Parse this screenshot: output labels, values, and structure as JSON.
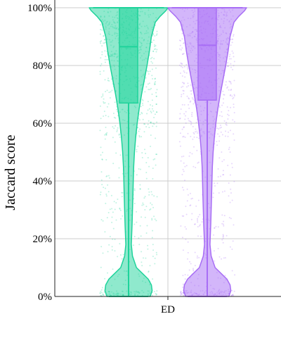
{
  "chart_data": {
    "type": "violin",
    "ylabel": "Jaccard score",
    "ylim": [
      0,
      1
    ],
    "y_tick_values": [
      0,
      0.2,
      0.4,
      0.6,
      0.8,
      1.0
    ],
    "y_tick_labels": [
      "0%",
      "20%",
      "40%",
      "60%",
      "80%",
      "100%"
    ],
    "categories": [
      "ED"
    ],
    "grid": true,
    "series": [
      {
        "color": "#1fd39b",
        "box": {
          "q1": 0.67,
          "median": 0.865,
          "q3": 1.0,
          "whisker_low": 0.0,
          "whisker_high": 1.0
        },
        "density": [
          [
            0.0,
            0.55
          ],
          [
            0.02,
            0.6
          ],
          [
            0.04,
            0.58
          ],
          [
            0.06,
            0.5
          ],
          [
            0.08,
            0.35
          ],
          [
            0.1,
            0.2
          ],
          [
            0.14,
            0.1
          ],
          [
            0.18,
            0.07
          ],
          [
            0.25,
            0.09
          ],
          [
            0.3,
            0.1
          ],
          [
            0.35,
            0.11
          ],
          [
            0.4,
            0.12
          ],
          [
            0.45,
            0.13
          ],
          [
            0.5,
            0.15
          ],
          [
            0.55,
            0.18
          ],
          [
            0.6,
            0.22
          ],
          [
            0.65,
            0.27
          ],
          [
            0.7,
            0.33
          ],
          [
            0.75,
            0.4
          ],
          [
            0.8,
            0.47
          ],
          [
            0.85,
            0.53
          ],
          [
            0.9,
            0.58
          ],
          [
            0.95,
            0.68
          ],
          [
            0.97,
            0.8
          ],
          [
            0.99,
            0.95
          ],
          [
            1.0,
            1.0
          ]
        ]
      },
      {
        "color": "#a86ef5",
        "box": {
          "q1": 0.68,
          "median": 0.87,
          "q3": 1.0,
          "whisker_low": 0.0,
          "whisker_high": 1.0
        },
        "density": [
          [
            0.0,
            0.55
          ],
          [
            0.02,
            0.6
          ],
          [
            0.04,
            0.58
          ],
          [
            0.06,
            0.5
          ],
          [
            0.08,
            0.35
          ],
          [
            0.1,
            0.2
          ],
          [
            0.14,
            0.1
          ],
          [
            0.18,
            0.07
          ],
          [
            0.25,
            0.09
          ],
          [
            0.3,
            0.1
          ],
          [
            0.35,
            0.11
          ],
          [
            0.4,
            0.12
          ],
          [
            0.45,
            0.13
          ],
          [
            0.5,
            0.15
          ],
          [
            0.55,
            0.18
          ],
          [
            0.6,
            0.22
          ],
          [
            0.65,
            0.27
          ],
          [
            0.7,
            0.33
          ],
          [
            0.75,
            0.4
          ],
          [
            0.8,
            0.47
          ],
          [
            0.85,
            0.53
          ],
          [
            0.9,
            0.58
          ],
          [
            0.95,
            0.68
          ],
          [
            0.97,
            0.8
          ],
          [
            0.99,
            0.95
          ],
          [
            1.0,
            1.0
          ]
        ]
      }
    ]
  }
}
